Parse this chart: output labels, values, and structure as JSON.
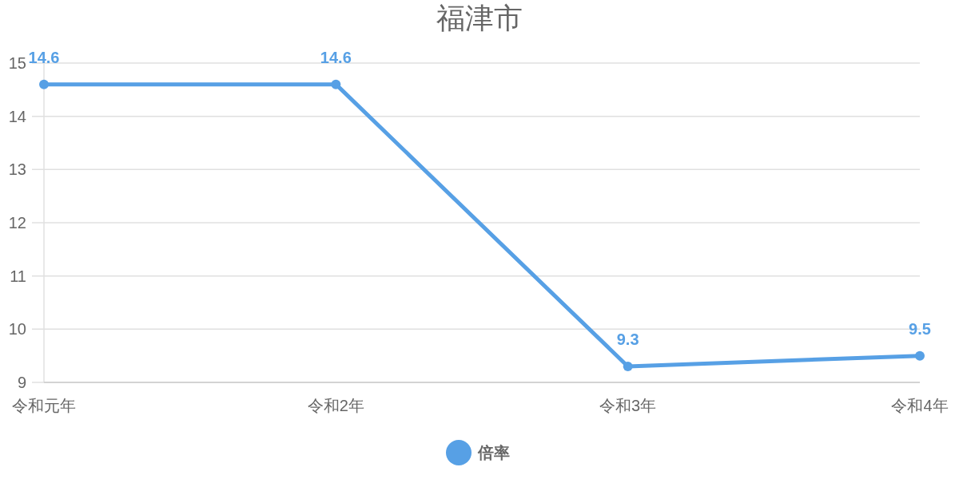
{
  "chart_data": {
    "type": "line",
    "title": "福津市",
    "categories": [
      "令和元年",
      "令和2年",
      "令和3年",
      "令和4年"
    ],
    "series": [
      {
        "name": "倍率",
        "color": "#57a0e5",
        "values": [
          14.6,
          14.6,
          9.3,
          9.5
        ]
      }
    ],
    "ylim": [
      9,
      15
    ],
    "yticks": [
      9,
      10,
      11,
      12,
      13,
      14,
      15
    ],
    "grid": "y",
    "legend": "bottom",
    "marker": "circle",
    "data_labels": true
  }
}
